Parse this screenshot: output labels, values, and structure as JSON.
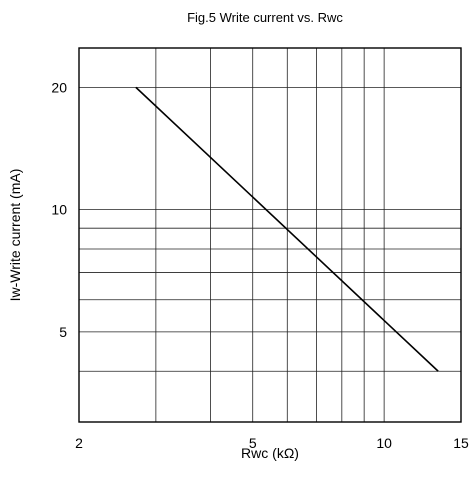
{
  "chart_data": {
    "type": "line",
    "title": "Fig.5 Write current vs. Rwc",
    "xlabel": "Rwc (kΩ)",
    "ylabel": "Iw-Write current (mA)",
    "x_scale": "log",
    "y_scale": "log",
    "xlim": [
      2,
      15
    ],
    "ylim": [
      3,
      25
    ],
    "x_ticks": [
      2,
      5,
      10,
      15
    ],
    "y_ticks": [
      5,
      10,
      20
    ],
    "x_gridlines": [
      3,
      4,
      5,
      6,
      7,
      8,
      9,
      10
    ],
    "y_gridlines": [
      4,
      5,
      6,
      7,
      8,
      9,
      10,
      20
    ],
    "grid": true,
    "legend": "none",
    "line_color": "#000000",
    "series": [
      {
        "x": [
          2.7,
          13.3
        ],
        "y": [
          20,
          4
        ]
      }
    ]
  }
}
